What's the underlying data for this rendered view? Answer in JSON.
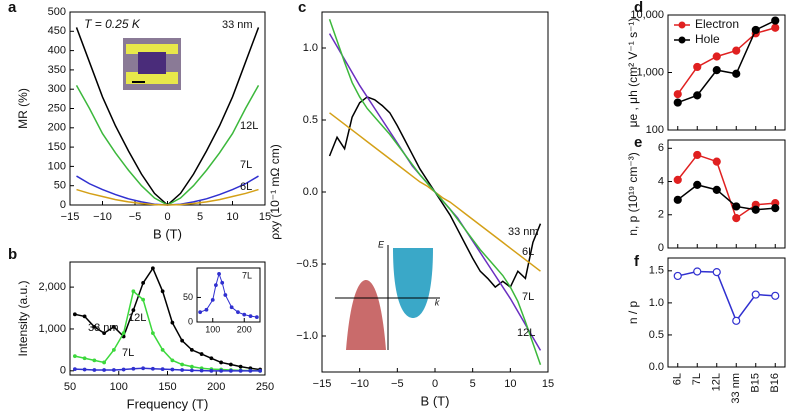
{
  "chart_data": [
    {
      "type": "line",
      "panel_label": "a",
      "xlabel": "B (T)",
      "ylabel": "MR (%)",
      "xlim": [
        -15,
        15
      ],
      "xticks": [
        {
          "value": -15,
          "label": "−15"
        },
        {
          "value": -10,
          "label": "−10"
        },
        {
          "value": -5,
          "label": "−5"
        },
        0,
        5,
        10,
        15
      ],
      "ylim": [
        0,
        500
      ],
      "yticks": [
        0,
        50,
        100,
        150,
        200,
        250,
        300,
        350,
        400,
        450,
        500
      ],
      "annotations": [
        "T = 0.25 K"
      ],
      "x": [
        -14,
        -12,
        -10,
        -8,
        -6,
        -4,
        -2,
        0,
        2,
        4,
        6,
        8,
        10,
        12,
        14
      ],
      "series": [
        {
          "name": "33 nm",
          "color": "#000000",
          "values": [
            460,
            370,
            280,
            205,
            140,
            80,
            30,
            0,
            30,
            80,
            140,
            205,
            280,
            370,
            460
          ]
        },
        {
          "name": "12L",
          "color": "#3cb83c",
          "values": [
            310,
            250,
            185,
            135,
            90,
            50,
            18,
            0,
            18,
            50,
            90,
            135,
            185,
            250,
            310
          ]
        },
        {
          "name": "7L",
          "color": "#3030d0",
          "values": [
            75,
            55,
            40,
            27,
            16,
            8,
            2,
            0,
            2,
            8,
            16,
            27,
            40,
            55,
            75
          ]
        },
        {
          "name": "6L",
          "color": "#d4a017",
          "values": [
            40,
            30,
            22,
            14,
            8,
            4,
            1,
            0,
            1,
            4,
            8,
            14,
            22,
            30,
            40
          ]
        }
      ]
    },
    {
      "type": "line",
      "panel_label": "b",
      "xlabel": "Frequency (T)",
      "ylabel": "Intensity (a.u.)",
      "marker": "dot",
      "xlim": [
        50,
        250
      ],
      "xticks": [
        50,
        100,
        150,
        200,
        250
      ],
      "ylim": [
        -100,
        2600
      ],
      "yticks": [
        0,
        {
          "value": 1000,
          "label": "1,000"
        },
        {
          "value": 2000,
          "label": "2,000"
        }
      ],
      "x": [
        55,
        65,
        75,
        85,
        95,
        105,
        115,
        125,
        135,
        145,
        155,
        165,
        175,
        185,
        195,
        205,
        215,
        225,
        235,
        245
      ],
      "series": [
        {
          "name": "33 nm",
          "color": "#000000",
          "values": [
            1350,
            1300,
            1050,
            900,
            1050,
            820,
            1450,
            2100,
            2450,
            1900,
            1150,
            720,
            500,
            400,
            300,
            200,
            150,
            100,
            60,
            30
          ]
        },
        {
          "name": "12L",
          "color": "#3cd83c",
          "values": [
            350,
            300,
            250,
            200,
            500,
            900,
            1900,
            1700,
            900,
            500,
            250,
            150,
            100,
            60,
            40,
            30,
            20,
            10,
            5,
            0
          ]
        },
        {
          "name": "7L",
          "color": "#3030d0",
          "values": [
            40,
            30,
            20,
            20,
            20,
            30,
            50,
            60,
            50,
            40,
            30,
            20,
            10,
            5,
            0,
            0,
            0,
            0,
            0,
            0
          ]
        }
      ]
    },
    {
      "type": "line",
      "marker": "dot",
      "xlim": [
        50,
        250
      ],
      "xticks": [
        100,
        200
      ],
      "ylim": [
        0,
        110
      ],
      "yticks": [
        0,
        50
      ],
      "x": [
        60,
        80,
        100,
        110,
        120,
        130,
        140,
        160,
        180,
        200,
        220,
        240
      ],
      "series": [
        {
          "name": "7L",
          "color": "#3030d0",
          "values": [
            20,
            25,
            45,
            75,
            98,
            80,
            55,
            30,
            20,
            15,
            12,
            10
          ]
        }
      ]
    },
    {
      "type": "line",
      "panel_label": "c",
      "xlabel": "B (T)",
      "ylabel": "ρxy (10⁻¹ mΩ cm)",
      "xlim": [
        -15,
        15
      ],
      "xticks": [
        {
          "value": -15,
          "label": "−15"
        },
        {
          "value": -10,
          "label": "−10"
        },
        {
          "value": -5,
          "label": "−5"
        },
        0,
        5,
        10,
        15
      ],
      "ylim": [
        -1.25,
        1.25
      ],
      "yticks": [
        {
          "value": -1,
          "label": "−1.0"
        },
        {
          "value": -0.5,
          "label": "−0.5"
        },
        {
          "value": 0,
          "label": "0.0"
        },
        0.5,
        {
          "value": 1,
          "label": "1.0"
        }
      ],
      "annotations": [
        "E",
        "k"
      ],
      "x": [
        -14,
        -13,
        -12,
        -11,
        -10,
        -9,
        -8,
        -7,
        -6,
        -5,
        -4,
        -3,
        -2,
        -1,
        0,
        1,
        2,
        3,
        4,
        5,
        6,
        7,
        8,
        9,
        10,
        11,
        12,
        13,
        14
      ],
      "series": [
        {
          "name": "33 nm",
          "color": "#000000",
          "values": [
            0.25,
            0.38,
            0.3,
            0.52,
            0.62,
            0.66,
            0.64,
            0.6,
            0.55,
            0.46,
            0.36,
            0.26,
            0.16,
            0.08,
            0,
            -0.08,
            -0.16,
            -0.26,
            -0.36,
            -0.46,
            -0.55,
            -0.6,
            -0.66,
            -0.62,
            -0.66,
            -0.55,
            -0.6,
            -0.35,
            -0.22
          ]
        },
        {
          "name": "6L",
          "color": "#d4a017",
          "values": [
            0.55,
            0.51,
            0.47,
            0.43,
            0.39,
            0.35,
            0.31,
            0.27,
            0.23,
            0.19,
            0.15,
            0.11,
            0.07,
            0.04,
            0,
            -0.04,
            -0.07,
            -0.11,
            -0.15,
            -0.19,
            -0.23,
            -0.27,
            -0.31,
            -0.35,
            -0.39,
            -0.43,
            -0.47,
            -0.51,
            -0.55
          ]
        },
        {
          "name": "7L",
          "color": "#6a2fc0",
          "values": [
            1.1,
            1.01,
            0.92,
            0.83,
            0.74,
            0.66,
            0.58,
            0.5,
            0.42,
            0.34,
            0.26,
            0.18,
            0.12,
            0.06,
            0,
            -0.06,
            -0.12,
            -0.18,
            -0.26,
            -0.34,
            -0.42,
            -0.5,
            -0.58,
            -0.66,
            -0.74,
            -0.83,
            -0.92,
            -1.01,
            -1.1
          ]
        },
        {
          "name": "12L",
          "color": "#3cb83c",
          "values": [
            1.2,
            1.05,
            0.9,
            0.76,
            0.66,
            0.58,
            0.52,
            0.46,
            0.4,
            0.33,
            0.26,
            0.19,
            0.12,
            0.06,
            0,
            -0.06,
            -0.12,
            -0.19,
            -0.26,
            -0.33,
            -0.4,
            -0.46,
            -0.52,
            -0.58,
            -0.66,
            -0.76,
            -0.9,
            -1.05,
            -1.2
          ]
        }
      ]
    },
    {
      "type": "line",
      "panel_label": "d",
      "ylabel": "μe , μh (cm² V⁻¹ s⁻¹)",
      "log_scale": true,
      "legend": "upper left",
      "marker": "filled",
      "categories": [
        null,
        null,
        null,
        null,
        null,
        null
      ],
      "ylim": [
        100,
        10000
      ],
      "yticks": [
        100,
        {
          "value": 1000,
          "label": "1,000"
        },
        {
          "value": 10000,
          "label": "10,000"
        }
      ],
      "series": [
        {
          "name": "Electron",
          "color": "#e02020",
          "values": [
            420,
            1250,
            1900,
            2400,
            4800,
            6000
          ]
        },
        {
          "name": "Hole",
          "color": "#000000",
          "values": [
            300,
            400,
            1100,
            950,
            5500,
            8000
          ]
        }
      ]
    },
    {
      "type": "line",
      "panel_label": "e",
      "ylabel": "n, p (10¹⁹ cm⁻³)",
      "marker": "filled",
      "categories": [
        null,
        null,
        null,
        null,
        null,
        null
      ],
      "ylim": [
        0,
        6.5
      ],
      "yticks": [
        0,
        2,
        4,
        6
      ],
      "series": [
        {
          "color": "#e02020",
          "values": [
            4.1,
            5.6,
            5.2,
            1.8,
            2.6,
            2.7
          ]
        },
        {
          "color": "#000000",
          "values": [
            2.9,
            3.8,
            3.5,
            2.5,
            2.3,
            2.4
          ]
        }
      ]
    },
    {
      "type": "line",
      "panel_label": "f",
      "ylabel": "n / p",
      "marker": "open",
      "categories": [
        "6L",
        "7L",
        "12L",
        "33 nm",
        "B15",
        "B16"
      ],
      "ylim": [
        0,
        1.7
      ],
      "yticks": [
        {
          "value": 0,
          "label": "0.0"
        },
        0.5,
        {
          "value": 1,
          "label": "1.0"
        },
        1.5
      ],
      "series": [
        {
          "color": "#3030d0",
          "values": [
            1.42,
            1.49,
            1.48,
            0.72,
            1.13,
            1.11
          ]
        }
      ]
    }
  ]
}
